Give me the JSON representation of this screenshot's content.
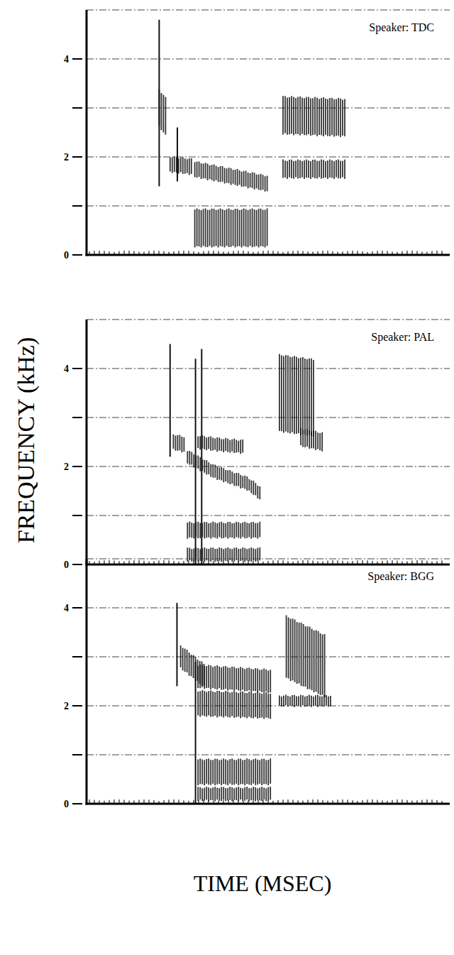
{
  "chart_data": [
    {
      "type": "spectrogram",
      "title": "Speaker: TDC",
      "xlim": [
        0,
        1000
      ],
      "ylim": [
        0,
        5
      ],
      "yticks": [
        0,
        2,
        4
      ],
      "minor_yticks": [
        1,
        3
      ],
      "tick_labels": "y",
      "grid": true,
      "bands": [
        {
          "x": [
            200,
            220
          ],
          "values": [
            3.0,
            2.8
          ],
          "bandwidth": 0.8
        },
        {
          "x": [
            230,
            290
          ],
          "values": [
            1.85,
            1.8
          ],
          "bandwidth": 0.35
        },
        {
          "x": [
            298,
            400,
            502
          ],
          "values": [
            1.75,
            1.6,
            1.45
          ],
          "bandwidth": 0.35
        },
        {
          "x": [
            298,
            502
          ],
          "values": [
            0.55,
            0.55
          ],
          "bandwidth": 0.8
        },
        {
          "x": [
            541,
            716
          ],
          "values": [
            2.85,
            2.8
          ],
          "bandwidth": 0.8
        },
        {
          "x": [
            541,
            716
          ],
          "values": [
            1.75,
            1.75
          ],
          "bandwidth": 0.4
        }
      ],
      "spikes": [
        {
          "x": 200,
          "low": 1.4,
          "high": 4.8
        },
        {
          "x": 250,
          "low": 1.5,
          "high": 2.6
        }
      ]
    },
    {
      "type": "spectrogram",
      "title": "Speaker: PAL",
      "xlim": [
        0,
        1000
      ],
      "ylim": [
        0,
        5
      ],
      "yticks": [
        0,
        2,
        4
      ],
      "minor_yticks": [
        1,
        3
      ],
      "tick_labels": "y",
      "grid": true,
      "bands": [
        {
          "x": [
            239,
            269
          ],
          "values": [
            2.5,
            2.45
          ],
          "bandwidth": 0.35
        },
        {
          "x": [
            307,
            360,
            434
          ],
          "values": [
            2.5,
            2.45,
            2.4
          ],
          "bandwidth": 0.3
        },
        {
          "x": [
            278,
            350,
            444,
            479
          ],
          "values": [
            2.2,
            1.9,
            1.65,
            1.45
          ],
          "bandwidth": 0.3
        },
        {
          "x": [
            278,
            483
          ],
          "values": [
            0.7,
            0.7
          ],
          "bandwidth": 0.35
        },
        {
          "x": [
            278,
            483
          ],
          "values": [
            0.2,
            0.2
          ],
          "bandwidth": 0.3
        },
        {
          "x": [
            531,
            628
          ],
          "values": [
            3.5,
            3.4
          ],
          "bandwidth": 1.6
        },
        {
          "x": [
            590,
            650
          ],
          "values": [
            2.6,
            2.5
          ],
          "bandwidth": 0.4
        }
      ],
      "spikes": [
        {
          "x": 230,
          "low": 2.2,
          "high": 4.5
        },
        {
          "x": 300,
          "low": 0,
          "high": 4.2
        },
        {
          "x": 317,
          "low": 0,
          "high": 4.4
        }
      ]
    },
    {
      "type": "spectrogram",
      "title": "Speaker: BGG",
      "xlim": [
        0,
        1000
      ],
      "ylim": [
        0,
        5
      ],
      "yticks": [
        0,
        2,
        4
      ],
      "minor_yticks": [
        1,
        3
      ],
      "tick_labels": "y",
      "grid": true,
      "bands": [
        {
          "x": [
            259,
            327
          ],
          "values": [
            3.0,
            2.6
          ],
          "bandwidth": 0.5
        },
        {
          "x": [
            307,
            512
          ],
          "values": [
            2.05,
            2.0
          ],
          "bandwidth": 0.55
        },
        {
          "x": [
            307,
            512
          ],
          "values": [
            2.6,
            2.5
          ],
          "bandwidth": 0.5
        },
        {
          "x": [
            307,
            512
          ],
          "values": [
            0.65,
            0.65
          ],
          "bandwidth": 0.55
        },
        {
          "x": [
            307,
            512
          ],
          "values": [
            0.2,
            0.2
          ],
          "bandwidth": 0.3
        },
        {
          "x": [
            550,
            660
          ],
          "values": [
            3.2,
            2.8
          ],
          "bandwidth": 1.3
        },
        {
          "x": [
            531,
            677
          ],
          "values": [
            2.1,
            2.1
          ],
          "bandwidth": 0.25
        }
      ],
      "spikes": [
        {
          "x": 249,
          "low": 2.4,
          "high": 4.1
        },
        {
          "x": 300,
          "low": 0,
          "high": 2.9
        }
      ]
    }
  ],
  "axis_labels": {
    "y": "FREQUENCY (kHz)",
    "x": "TIME (MSEC)"
  }
}
